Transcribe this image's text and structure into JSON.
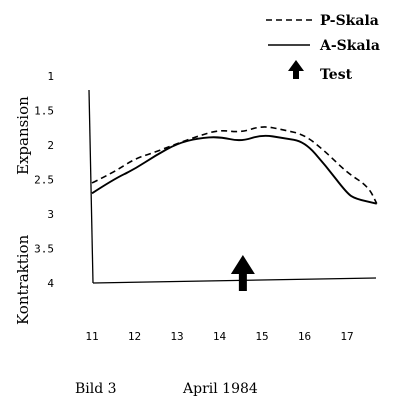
{
  "chart_data": {
    "type": "line",
    "xlabel": "",
    "ylabel_top": "Expansion",
    "ylabel_bottom": "Kontraktion",
    "x_ticks": [
      "11",
      "12",
      "13",
      "14",
      "15",
      "16",
      "17"
    ],
    "y_ticks": [
      "1",
      "1.5",
      "2",
      "2.5",
      "3",
      "3.5",
      "4"
    ],
    "ylim": [
      4,
      1
    ],
    "xlim": [
      11,
      17.7
    ],
    "series": [
      {
        "name": "P-Skala",
        "style": "dashed",
        "x": [
          11.0,
          11.5,
          12.0,
          12.5,
          13.0,
          13.5,
          14.0,
          14.5,
          15.0,
          15.5,
          16.0,
          16.5,
          17.0,
          17.5,
          17.7
        ],
        "y": [
          2.55,
          2.4,
          2.2,
          2.1,
          1.98,
          1.87,
          1.78,
          1.82,
          1.72,
          1.78,
          1.85,
          2.1,
          2.4,
          2.6,
          2.85
        ]
      },
      {
        "name": "A-Skala",
        "style": "solid",
        "x": [
          11.0,
          11.5,
          12.0,
          12.5,
          13.0,
          13.5,
          14.0,
          14.5,
          15.0,
          15.5,
          16.0,
          16.5,
          17.0,
          17.2,
          17.7
        ],
        "y": [
          2.7,
          2.5,
          2.35,
          2.15,
          1.98,
          1.9,
          1.88,
          1.95,
          1.85,
          1.9,
          1.95,
          2.3,
          2.7,
          2.78,
          2.85
        ]
      }
    ],
    "marker": {
      "name": "Test",
      "x": 14.55
    },
    "caption_left": "Bild 3",
    "caption_right": "April 1984"
  },
  "legend": {
    "entries": [
      {
        "label": "P-Skala",
        "style": "dashed"
      },
      {
        "label": "A-Skala",
        "style": "solid"
      },
      {
        "label": "Test",
        "style": "arrow"
      }
    ]
  },
  "colors": {
    "ink": "#000000",
    "background": "#ffffff"
  }
}
